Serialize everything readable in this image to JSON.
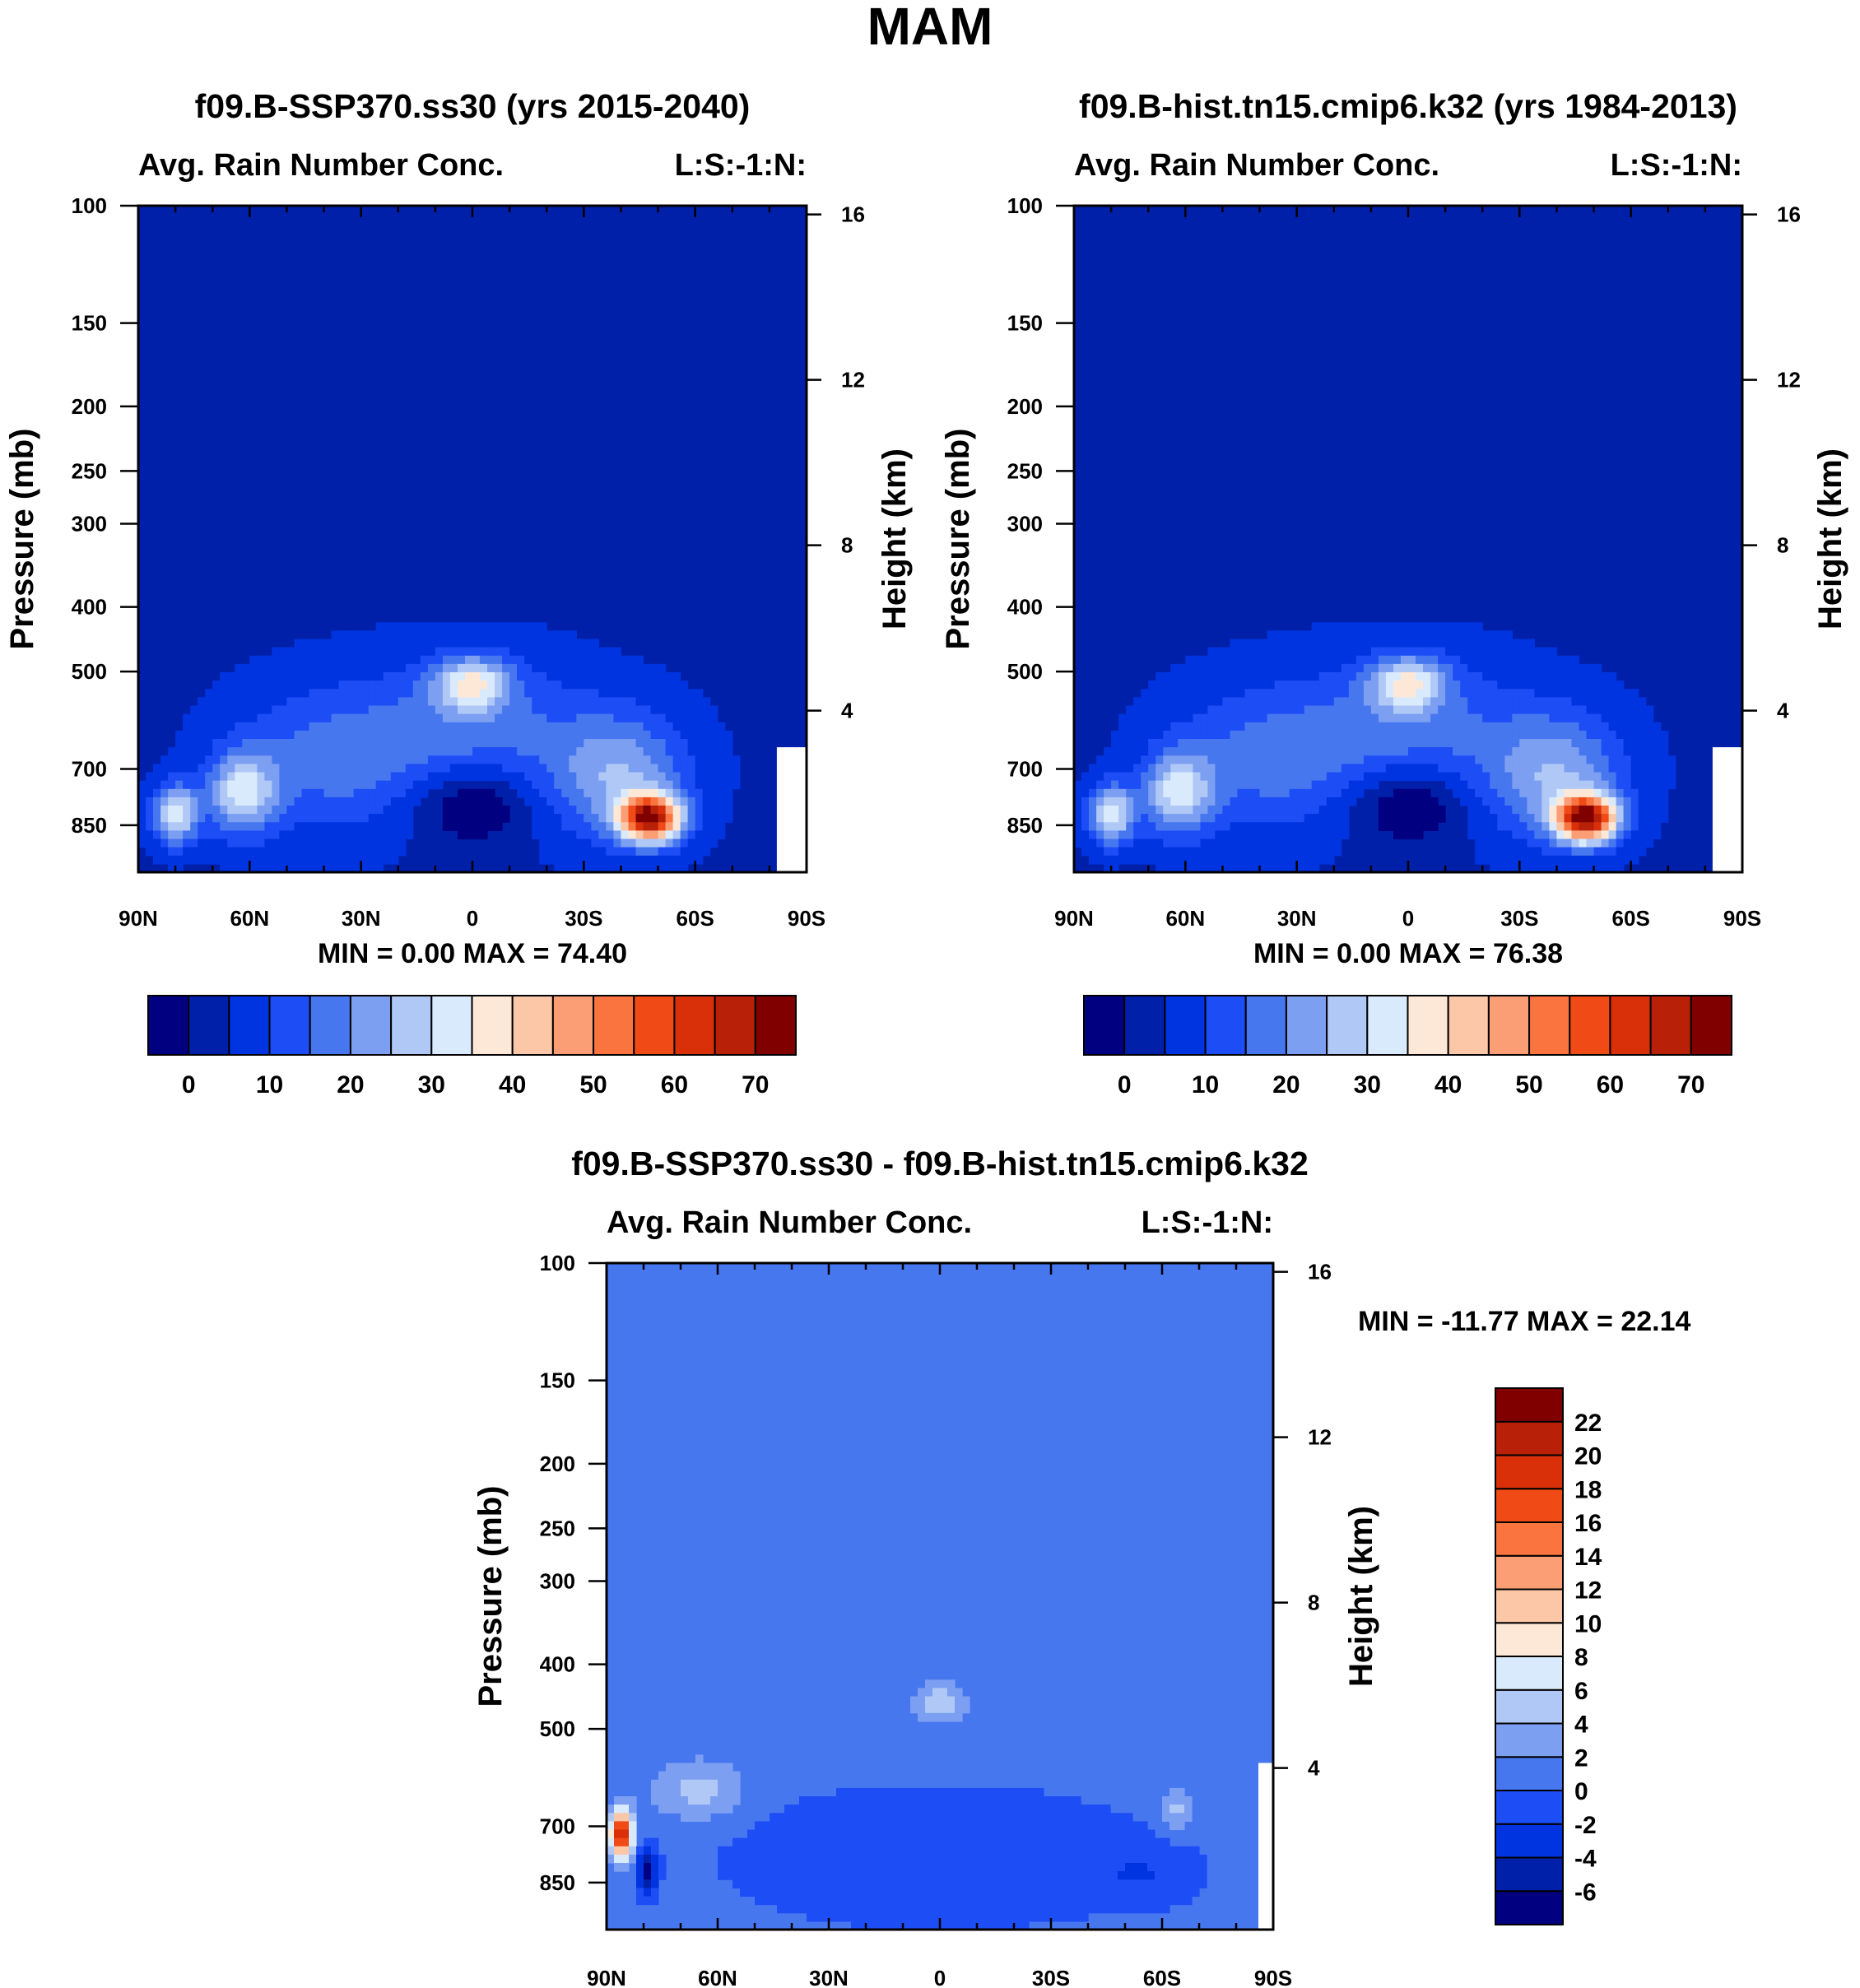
{
  "figure_title": "MAM",
  "colors": {
    "field_levels": [
      "#000080",
      "#0020aa",
      "#0034e0",
      "#1d4df5",
      "#4777ef",
      "#7c9ff2",
      "#b0c8f6",
      "#daeafd",
      "#fde8d7",
      "#fbc7a7",
      "#fb9e76",
      "#f9743f",
      "#f04a16",
      "#d9300a",
      "#b82008",
      "#800000"
    ],
    "diff_levels": [
      "#000080",
      "#0020aa",
      "#0034e0",
      "#1d4df5",
      "#4777ef",
      "#7c9ff2",
      "#b0c8f6",
      "#daeafd",
      "#fde8d7",
      "#fbc7a7",
      "#fb9e76",
      "#f9743f",
      "#f04a16",
      "#d9300a",
      "#b82008",
      "#800000"
    ]
  },
  "chart_data": [
    {
      "type": "contour",
      "panel_title": "f09.B-SSP370.ss30 (yrs 2015-2040)",
      "left_label": "Avg. Rain Number Conc.",
      "right_label": "L:S:-1:N:",
      "ylabel": "Pressure (mb)",
      "ylabel_right": "Height (km)",
      "x_ticks": [
        "90N",
        "60N",
        "30N",
        "0",
        "30S",
        "60S",
        "90S"
      ],
      "x_range": [
        90,
        -90
      ],
      "y_ticks": [
        100,
        150,
        200,
        250,
        300,
        400,
        500,
        700,
        850
      ],
      "y_range": [
        100,
        1000
      ],
      "height_ticks": [
        16,
        12,
        8,
        4
      ],
      "stats": {
        "min_label": "MIN =",
        "min": "0.00",
        "max_label": "MAX =",
        "max": "74.40"
      },
      "contour_levels": [
        0,
        5,
        10,
        15,
        20,
        25,
        30,
        35,
        40,
        45,
        50,
        55,
        60,
        65,
        70
      ],
      "colorbar_labels": [
        "0",
        "10",
        "20",
        "30",
        "40",
        "50",
        "60",
        "70"
      ]
    },
    {
      "type": "contour",
      "panel_title": "f09.B-hist.tn15.cmip6.k32 (yrs 1984-2013)",
      "left_label": "Avg. Rain Number Conc.",
      "right_label": "L:S:-1:N:",
      "ylabel": "Pressure (mb)",
      "ylabel_right": "Height (km)",
      "x_ticks": [
        "90N",
        "60N",
        "30N",
        "0",
        "30S",
        "60S",
        "90S"
      ],
      "x_range": [
        90,
        -90
      ],
      "y_ticks": [
        100,
        150,
        200,
        250,
        300,
        400,
        500,
        700,
        850
      ],
      "y_range": [
        100,
        1000
      ],
      "height_ticks": [
        16,
        12,
        8,
        4
      ],
      "stats": {
        "min_label": "MIN =",
        "min": "0.00",
        "max_label": "MAX =",
        "max": "76.38"
      },
      "contour_levels": [
        0,
        5,
        10,
        15,
        20,
        25,
        30,
        35,
        40,
        45,
        50,
        55,
        60,
        65,
        70
      ],
      "colorbar_labels": [
        "0",
        "10",
        "20",
        "30",
        "40",
        "50",
        "60",
        "70"
      ]
    },
    {
      "type": "contour",
      "panel_title": "f09.B-SSP370.ss30 - f09.B-hist.tn15.cmip6.k32",
      "left_label": "Avg. Rain Number Conc.",
      "right_label": "L:S:-1:N:",
      "ylabel": "Pressure (mb)",
      "ylabel_right": "Height (km)",
      "x_ticks": [
        "90N",
        "60N",
        "30N",
        "0",
        "30S",
        "60S",
        "90S"
      ],
      "x_range": [
        90,
        -90
      ],
      "y_ticks": [
        100,
        150,
        200,
        250,
        300,
        400,
        500,
        700,
        850
      ],
      "y_range": [
        100,
        1000
      ],
      "height_ticks": [
        16,
        12,
        8,
        4
      ],
      "stats": {
        "min_label": "MIN =",
        "min": "-11.77",
        "max_label": "MAX =",
        "max": "22.14"
      },
      "contour_levels": [
        -6,
        -4,
        -2,
        0,
        2,
        4,
        6,
        8,
        10,
        12,
        14,
        16,
        18,
        20,
        22
      ],
      "colorbar_labels": [
        "-6",
        "-4",
        "-2",
        "0",
        "2",
        "4",
        "6",
        "8",
        "10",
        "12",
        "14",
        "16",
        "18",
        "20",
        "22"
      ]
    }
  ]
}
